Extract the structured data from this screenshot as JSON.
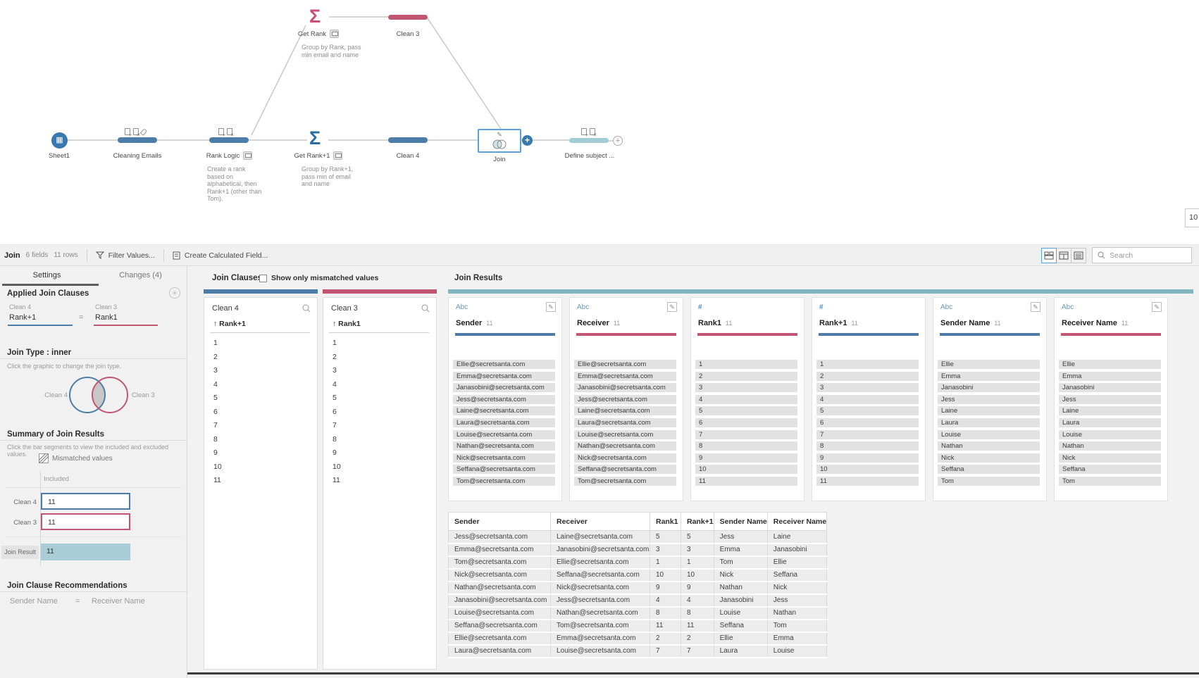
{
  "flow": {
    "nodes": {
      "sheet1": {
        "label": "Sheet1"
      },
      "cleaning_emails": {
        "label": "Cleaning Emails"
      },
      "rank_logic": {
        "label": "Rank Logic",
        "caption": "Create a rank based on alphabetical, then Rank+1 (other than Tom)."
      },
      "get_rank": {
        "label": "Get Rank",
        "caption": "Group by Rank, pass min email and name"
      },
      "clean3": {
        "label": "Clean 3"
      },
      "get_rank_plus1": {
        "label": "Get Rank+1",
        "caption": "Group by Rank+1, pass min of email and name"
      },
      "clean4": {
        "label": "Clean 4"
      },
      "join": {
        "label": "Join"
      },
      "define_subject": {
        "label": "Define subject ..."
      }
    },
    "zoom_badge": "10"
  },
  "icons": {
    "aggregate_sigma": "Σ"
  },
  "toolbar": {
    "step_title": "Join",
    "fields_count": "6 fields",
    "rows_count": "11 rows",
    "filter_label": "Filter Values...",
    "calc_label": "Create Calculated Field...",
    "search_placeholder": "Search"
  },
  "left_panel": {
    "tabs": {
      "settings": "Settings",
      "changes": "Changes (4)"
    },
    "applied_clauses": {
      "heading": "Applied Join Clauses",
      "left_table": "Clean 4",
      "right_table": "Clean 3",
      "left_field": "Rank+1",
      "equals": "=",
      "right_field": "Rank1"
    },
    "join_type": {
      "heading": "Join Type : inner",
      "hint": "Click the graphic to change the join type.",
      "left_label": "Clean 4",
      "right_label": "Clean 3"
    },
    "summary": {
      "heading": "Summary of Join Results",
      "hint": "Click the bar segments to view the included and excluded values.",
      "legend": "Mismatched values",
      "column_label": "Included",
      "bars": [
        {
          "label": "Clean 4",
          "value": "11"
        },
        {
          "label": "Clean 3",
          "value": "11"
        },
        {
          "label": "Join Result",
          "value": "11"
        }
      ]
    },
    "recommendations": {
      "heading": "Join Clause Recommendations",
      "left_field": "Sender Name",
      "equals": "=",
      "right_field": "Receiver Name"
    }
  },
  "join_clauses": {
    "title": "Join Clauses",
    "checkbox_label": "Show only mismatched values",
    "columns": [
      {
        "table": "Clean 4",
        "field": "Rank+1",
        "accent": "blue",
        "values": [
          "1",
          "2",
          "3",
          "4",
          "5",
          "6",
          "7",
          "8",
          "9",
          "10",
          "11"
        ]
      },
      {
        "table": "Clean 3",
        "field": "Rank1",
        "accent": "pink",
        "values": [
          "1",
          "2",
          "3",
          "4",
          "5",
          "6",
          "7",
          "8",
          "9",
          "10",
          "11"
        ]
      }
    ]
  },
  "join_results": {
    "title": "Join Results",
    "fields": [
      {
        "dtype": "Abc",
        "name": "Sender",
        "count": "11",
        "accent": "blue",
        "editable": true,
        "values": [
          "Ellie@secretsanta.com",
          "Emma@secretsanta.com",
          "Janasobini@secretsanta.com",
          "Jess@secretsanta.com",
          "Laine@secretsanta.com",
          "Laura@secretsanta.com",
          "Louise@secretsanta.com",
          "Nathan@secretsanta.com",
          "Nick@secretsanta.com",
          "Seffana@secretsanta.com",
          "Tom@secretsanta.com"
        ]
      },
      {
        "dtype": "Abc",
        "name": "Receiver",
        "count": "11",
        "accent": "pink",
        "editable": true,
        "values": [
          "Ellie@secretsanta.com",
          "Emma@secretsanta.com",
          "Janasobini@secretsanta.com",
          "Jess@secretsanta.com",
          "Laine@secretsanta.com",
          "Laura@secretsanta.com",
          "Louise@secretsanta.com",
          "Nathan@secretsanta.com",
          "Nick@secretsanta.com",
          "Seffana@secretsanta.com",
          "Tom@secretsanta.com"
        ]
      },
      {
        "dtype": "#",
        "name": "Rank1",
        "count": "11",
        "accent": "pink",
        "editable": false,
        "values": [
          "1",
          "2",
          "3",
          "4",
          "5",
          "6",
          "7",
          "8",
          "9",
          "10",
          "11"
        ]
      },
      {
        "dtype": "#",
        "name": "Rank+1",
        "count": "11",
        "accent": "blue",
        "editable": false,
        "values": [
          "1",
          "2",
          "3",
          "4",
          "5",
          "6",
          "7",
          "8",
          "9",
          "10",
          "11"
        ]
      },
      {
        "dtype": "Abc",
        "name": "Sender Name",
        "count": "11",
        "accent": "blue",
        "editable": true,
        "values": [
          "Ellie",
          "Emma",
          "Janasobini",
          "Jess",
          "Laine",
          "Laura",
          "Louise",
          "Nathan",
          "Nick",
          "Seffana",
          "Tom"
        ]
      },
      {
        "dtype": "Abc",
        "name": "Receiver Name",
        "count": "11",
        "accent": "pink",
        "editable": true,
        "values": [
          "Ellie",
          "Emma",
          "Janasobini",
          "Jess",
          "Laine",
          "Laura",
          "Louise",
          "Nathan",
          "Nick",
          "Seffana",
          "Tom"
        ]
      }
    ]
  },
  "results_table": {
    "headers": [
      "Sender",
      "Receiver",
      "Rank1",
      "Rank+1",
      "Sender Name",
      "Receiver Name"
    ],
    "rows": [
      [
        "Jess@secretsanta.com",
        "Laine@secretsanta.com",
        "5",
        "5",
        "Jess",
        "Laine"
      ],
      [
        "Emma@secretsanta.com",
        "Janasobini@secretsanta.com",
        "3",
        "3",
        "Emma",
        "Janasobini"
      ],
      [
        "Tom@secretsanta.com",
        "Ellie@secretsanta.com",
        "1",
        "1",
        "Tom",
        "Ellie"
      ],
      [
        "Nick@secretsanta.com",
        "Seffana@secretsanta.com",
        "10",
        "10",
        "Nick",
        "Seffana"
      ],
      [
        "Nathan@secretsanta.com",
        "Nick@secretsanta.com",
        "9",
        "9",
        "Nathan",
        "Nick"
      ],
      [
        "Janasobini@secretsanta.com",
        "Jess@secretsanta.com",
        "4",
        "4",
        "Janasobini",
        "Jess"
      ],
      [
        "Louise@secretsanta.com",
        "Nathan@secretsanta.com",
        "8",
        "8",
        "Louise",
        "Nathan"
      ],
      [
        "Seffana@secretsanta.com",
        "Tom@secretsanta.com",
        "11",
        "11",
        "Seffana",
        "Tom"
      ],
      [
        "Ellie@secretsanta.com",
        "Emma@secretsanta.com",
        "2",
        "2",
        "Ellie",
        "Emma"
      ],
      [
        "Laura@secretsanta.com",
        "Louise@secretsanta.com",
        "7",
        "7",
        "Laura",
        "Louise"
      ]
    ]
  },
  "colors": {
    "blue": "#4b7da8",
    "pink": "#c25672",
    "teal_bar": "#7fb6c1",
    "teal_fill": "#a9ccd7",
    "node_teal": "#a3cdd5",
    "sigma_blue": "#2e6da4",
    "sigma_pink": "#c94f74",
    "selection": "#57a3dd",
    "sheet_circle": "#3878b0",
    "intersect_gray": "#c7c7c7"
  }
}
